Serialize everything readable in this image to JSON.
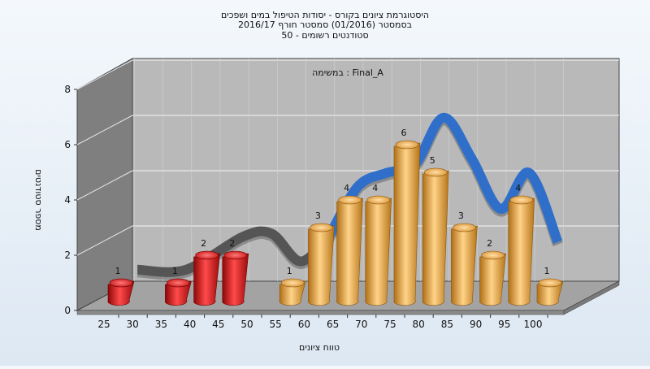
{
  "colors": {
    "background_top": "#f4f8fc",
    "background_bottom": "#dde8f3",
    "wall": "#b9b9b9",
    "floor": "#a0a0a0",
    "side_wall": "#7f7f7f",
    "fail_bar": "#e21b1b",
    "pass_bar": "#e9a84a",
    "curve_blue": "#2f6fca",
    "curve_gray": "#555555"
  },
  "chart_data": {
    "type": "bar",
    "title": [
      "היסטוגרמת ציונים בקורס - יסודות הטיפול במים ושפכים",
      "בסמסטר  (01/2016)  סמסטר חורף 2016/17",
      "סטודנטים רשומים - 50"
    ],
    "subtitle": "במשימה : Final_A",
    "xlabel": "טווח ציונים",
    "ylabel": "מספר סטודנטים",
    "x_ticks": [
      "25",
      "30",
      "35",
      "40",
      "45",
      "50",
      "55",
      "60",
      "65",
      "70",
      "75",
      "80",
      "85",
      "90",
      "95",
      "100"
    ],
    "y_ticks": [
      "0",
      "2",
      "4",
      "6",
      "8"
    ],
    "ylim": [
      0,
      8
    ],
    "bars": [
      {
        "x": 25,
        "value": 1,
        "label": "1",
        "status": "fail"
      },
      {
        "x": 35,
        "value": 1,
        "label": "1",
        "status": "fail"
      },
      {
        "x": 40,
        "value": 2,
        "label": "2",
        "status": "fail"
      },
      {
        "x": 45,
        "value": 2,
        "label": "2",
        "status": "fail"
      },
      {
        "x": 55,
        "value": 1,
        "label": "1",
        "status": "pass"
      },
      {
        "x": 60,
        "value": 3,
        "label": "3",
        "status": "pass"
      },
      {
        "x": 65,
        "value": 4,
        "label": "4",
        "status": "pass"
      },
      {
        "x": 70,
        "value": 4,
        "label": "4",
        "status": "pass"
      },
      {
        "x": 75,
        "value": 6,
        "label": "6",
        "status": "pass"
      },
      {
        "x": 80,
        "value": 5,
        "label": "5",
        "status": "pass"
      },
      {
        "x": 85,
        "value": 3,
        "label": "3",
        "status": "pass"
      },
      {
        "x": 90,
        "value": 2,
        "label": "2",
        "status": "pass"
      },
      {
        "x": 95,
        "value": 4,
        "label": "4",
        "status": "pass"
      },
      {
        "x": 100,
        "value": 1,
        "label": "1",
        "status": "pass"
      }
    ],
    "trend_curve": {
      "x": [
        26.5,
        35,
        45,
        50,
        55,
        60,
        65,
        70,
        75,
        80,
        85,
        90,
        95,
        100
      ],
      "y": [
        1,
        1,
        2.2,
        2.3,
        1.3,
        2.2,
        4.0,
        4.5,
        4.8,
        6.5,
        5.0,
        3.2,
        4.5,
        2.0
      ],
      "split_x": 57
    },
    "grid": true,
    "legend": "none"
  }
}
